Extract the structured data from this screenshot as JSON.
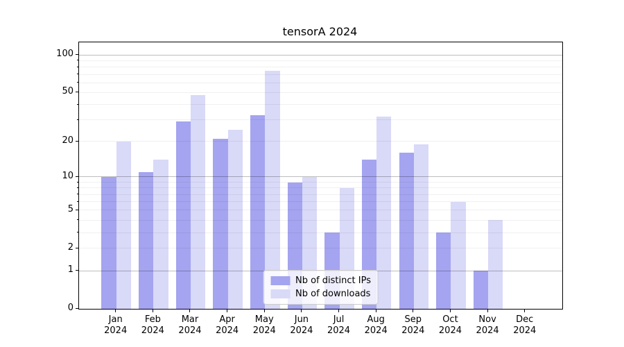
{
  "figure": {
    "title": "tensorA 2024",
    "background": "#ffffff"
  },
  "chart_data": {
    "type": "bar",
    "title": "tensorA 2024",
    "categories": [
      "Jan 2024",
      "Feb 2024",
      "Mar 2024",
      "Apr 2024",
      "May 2024",
      "Jun 2024",
      "Jul 2024",
      "Aug 2024",
      "Sep 2024",
      "Oct 2024",
      "Nov 2024",
      "Dec 2024"
    ],
    "series": [
      {
        "name": "Nb of distinct IPs",
        "color": "#a4a4f0",
        "values": [
          10,
          11,
          29,
          21,
          33,
          9,
          3,
          14,
          16,
          3,
          1,
          0
        ]
      },
      {
        "name": "Nb of downloads",
        "color": "#d9d9f8",
        "values": [
          20,
          14,
          48,
          25,
          75,
          10,
          8,
          32,
          19,
          6,
          4,
          0
        ]
      }
    ],
    "y_scale": "log1p",
    "ylim": [
      0,
      125
    ],
    "y_tick_labels": [
      "100",
      "50",
      "20",
      "10",
      "5",
      "2",
      "1",
      "0"
    ],
    "y_tick_values": [
      100,
      50,
      20,
      10,
      5,
      2,
      1,
      0
    ],
    "y_major_grid_values": [
      1,
      10,
      100
    ],
    "y_minor_grid_values": [
      2,
      3,
      4,
      5,
      6,
      7,
      8,
      9,
      20,
      30,
      40,
      50,
      60,
      70,
      80,
      90
    ],
    "grid": true,
    "legend_position": "lower center",
    "bar_colors": {
      "ips": "#a4a4f0",
      "downloads": "#d9d9f8"
    },
    "grid_major_color": "#bfbfbf",
    "grid_minor_color": "#ebebeb"
  }
}
